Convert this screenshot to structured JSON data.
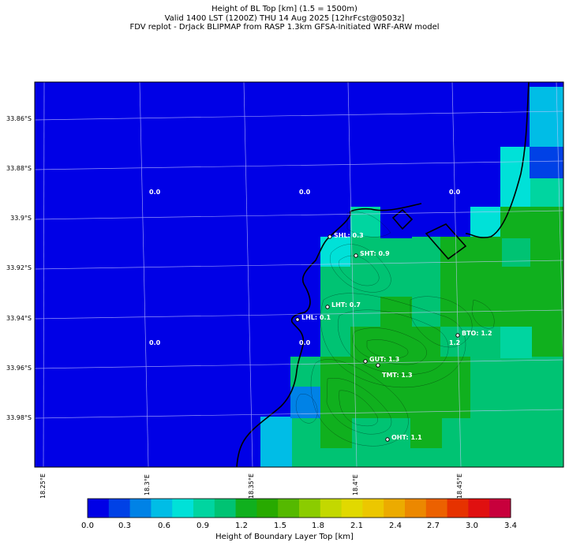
{
  "header": {
    "line1": "Height of BL Top [km] (1.5 = 1500m)",
    "line2": "Valid 1400 LST (1200Z) THU 14 Aug 2025 [12hrFcst@0503z]",
    "line3": "FDV replot - DrJack BLIPMAP from RASP 1.3km GFSA-Initiated WRF-ARW model"
  },
  "axes": {
    "lat_ticks": [
      "33.86°S",
      "33.88°S",
      "33.9°S",
      "33.92°S",
      "33.94°S",
      "33.96°S",
      "33.98°S"
    ],
    "lon_ticks": [
      "18.25°E",
      "18.3°E",
      "18.35°E",
      "18.4°E",
      "18.45°E"
    ]
  },
  "grid_values": [
    {
      "text": "0.0"
    },
    {
      "text": "0.0"
    },
    {
      "text": "0.0"
    },
    {
      "text": "0.0"
    },
    {
      "text": "0.0"
    },
    {
      "text": "1.2"
    }
  ],
  "stations": [
    {
      "label": "SHL: 0.3"
    },
    {
      "label": "SHT: 0.9"
    },
    {
      "label": "LHT: 0.7"
    },
    {
      "label": "LHL: 0.1"
    },
    {
      "label": "BTO: 1.2"
    },
    {
      "label": "GUT: 1.3"
    },
    {
      "label": "TMT: 1.3"
    },
    {
      "label": "OHT: 1.1"
    }
  ],
  "colorbar": {
    "label": "Height of Boundary Layer Top [km]",
    "ticks": [
      "0.0",
      "0.3",
      "0.6",
      "0.9",
      "1.2",
      "1.5",
      "1.8",
      "2.1",
      "2.4",
      "2.7",
      "3.0",
      "3.4"
    ],
    "colors": [
      "#0000e6",
      "#0041e6",
      "#0082e6",
      "#00bde6",
      "#00e1d8",
      "#00d5a0",
      "#00c373",
      "#10b01e",
      "#28aa00",
      "#55b900",
      "#8bcc00",
      "#c3d800",
      "#e1d900",
      "#ecc700",
      "#ecab00",
      "#ec8800",
      "#ec6100",
      "#e63200",
      "#e01010",
      "#c8003c"
    ]
  },
  "colors": {
    "land_low": "#00c373",
    "land_mid": "#10b01e",
    "sea": "#0000e6",
    "coast": "#000000"
  }
}
